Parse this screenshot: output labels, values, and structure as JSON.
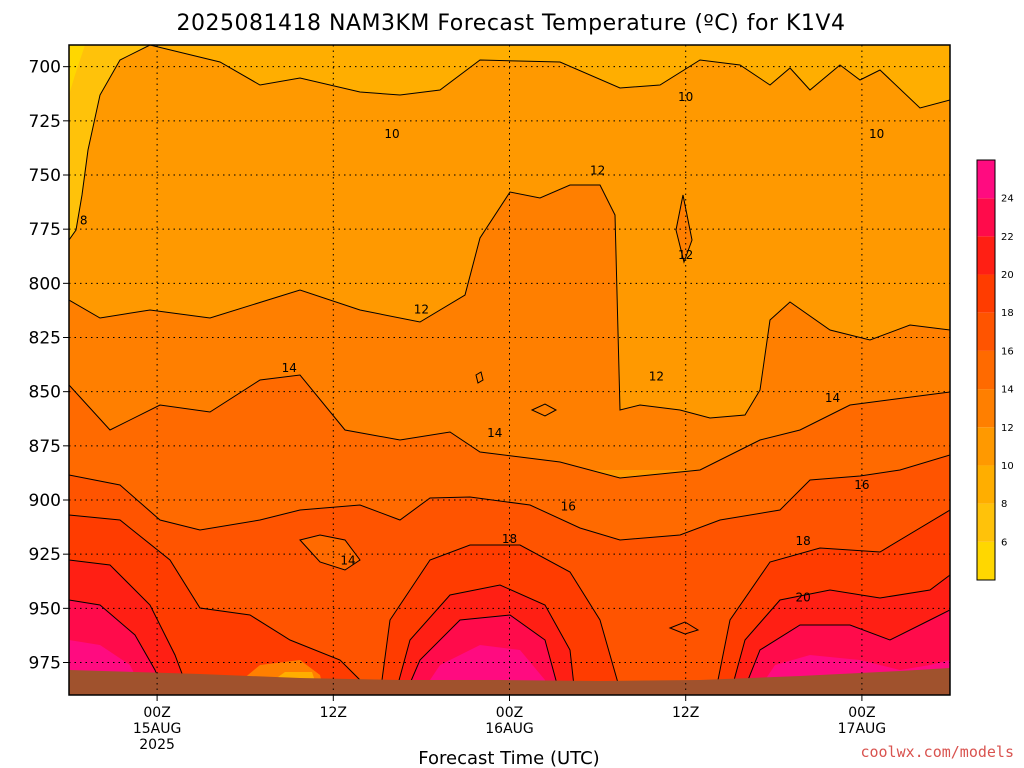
{
  "chart_data": {
    "type": "contour",
    "title": "2025081418 NAM3KM Forecast Temperature (ºC) for K1V4",
    "xlabel": "Forecast Time (UTC)",
    "ylabel": "",
    "y_scale": "pressure (hPa), inverted",
    "ylim": [
      990,
      690
    ],
    "xlim": [
      "2025-08-14T18Z",
      "2025-08-17T06Z"
    ],
    "y_ticks": [
      "700",
      "725",
      "750",
      "775",
      "800",
      "825",
      "850",
      "875",
      "900",
      "925",
      "950",
      "975"
    ],
    "x_ticks": [
      {
        "time": "2025-08-15T00Z",
        "line1": "00Z",
        "line2": "15AUG",
        "line3": "2025"
      },
      {
        "time": "2025-08-15T12Z",
        "line1": "12Z",
        "line2": "",
        "line3": ""
      },
      {
        "time": "2025-08-16T00Z",
        "line1": "00Z",
        "line2": "16AUG",
        "line3": ""
      },
      {
        "time": "2025-08-16T12Z",
        "line1": "12Z",
        "line2": "",
        "line3": ""
      },
      {
        "time": "2025-08-17T00Z",
        "line1": "00Z",
        "line2": "17AUG",
        "line3": ""
      }
    ],
    "grid": true,
    "colorbar": {
      "placement": "right",
      "levels": [
        4,
        6,
        8,
        10,
        12,
        14,
        16,
        18,
        20,
        22,
        24,
        26
      ],
      "tick_labels": [
        "6",
        "8",
        "10",
        "12",
        "14",
        "16",
        "18",
        "20",
        "22",
        "24"
      ],
      "colors": [
        "#ffd700",
        "#ffc20a",
        "#ffae00",
        "#ff9900",
        "#ff7f00",
        "#ff6a00",
        "#ff5400",
        "#ff3c00",
        "#ff1f14",
        "#ff0b4b",
        "#ff0b80"
      ]
    },
    "contour_labels": [
      {
        "text": "8",
        "time": "2025-08-14T19Z",
        "pressure": 771
      },
      {
        "text": "10",
        "time": "2025-08-15T16Z",
        "pressure": 731
      },
      {
        "text": "10",
        "time": "2025-08-16T12Z",
        "pressure": 714
      },
      {
        "text": "10",
        "time": "2025-08-17T01Z",
        "pressure": 731
      },
      {
        "text": "12",
        "time": "2025-08-16T06Z",
        "pressure": 748
      },
      {
        "text": "12",
        "time": "2025-08-16T12Z",
        "pressure": 787
      },
      {
        "text": "12",
        "time": "2025-08-15T18Z",
        "pressure": 812
      },
      {
        "text": "12",
        "time": "2025-08-16T10Z",
        "pressure": 843
      },
      {
        "text": "14",
        "time": "2025-08-15T09Z",
        "pressure": 839
      },
      {
        "text": "14",
        "time": "2025-08-15T23Z",
        "pressure": 869
      },
      {
        "text": "14",
        "time": "2025-08-16T22Z",
        "pressure": 853
      },
      {
        "text": "14",
        "time": "2025-08-15T13Z",
        "pressure": 928
      },
      {
        "text": "16",
        "time": "2025-08-16T04Z",
        "pressure": 903
      },
      {
        "text": "16",
        "time": "2025-08-17T00Z",
        "pressure": 893
      },
      {
        "text": "18",
        "time": "2025-08-16T00Z",
        "pressure": 918
      },
      {
        "text": "18",
        "time": "2025-08-16T20Z",
        "pressure": 919
      },
      {
        "text": "20",
        "time": "2025-08-16T20Z",
        "pressure": 945
      }
    ]
  },
  "credit": "coolwx.com/models"
}
